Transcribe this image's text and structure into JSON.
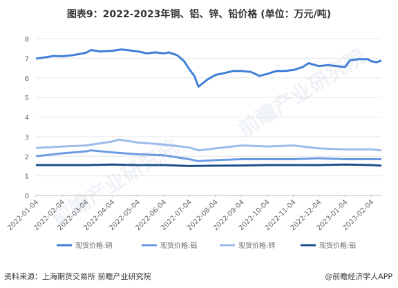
{
  "title": "图表9：2022-2023年铜、铝、锌、铅价格 (单位：万元/吨)",
  "source": "资料来源：上海期货交易所 前瞻产业研究院",
  "brand": "@前瞻经济学人APP",
  "watermark": "前瞻产业研究院",
  "chart_data": {
    "type": "line",
    "title": "图表9：2022-2023年铜、铝、锌、铅价格 (单位：万元/吨)",
    "xlabel": "",
    "ylabel": "",
    "ylim": [
      0,
      8
    ],
    "yticks": [
      0,
      1,
      2,
      3,
      4,
      5,
      6,
      7,
      8
    ],
    "xticks": [
      "2022-01-04",
      "2022-02-04",
      "2022-03-04",
      "2022-04-04",
      "2022-05-04",
      "2022-06-04",
      "2022-07-04",
      "2022-08-04",
      "2022-09-04",
      "2022-10-04",
      "2022-11-04",
      "2022-12-04",
      "2023-01-04",
      "2023-02-04"
    ],
    "legend_position": "bottom",
    "grid": "horizontal",
    "series": [
      {
        "name": "现货价格:铜",
        "color": "#3f7fd6",
        "points": [
          [
            "2022-01-04",
            6.98
          ],
          [
            "2022-01-15",
            7.05
          ],
          [
            "2022-01-25",
            7.12
          ],
          [
            "2022-02-04",
            7.1
          ],
          [
            "2022-02-15",
            7.15
          ],
          [
            "2022-02-25",
            7.22
          ],
          [
            "2022-03-04",
            7.28
          ],
          [
            "2022-03-10",
            7.42
          ],
          [
            "2022-03-20",
            7.35
          ],
          [
            "2022-04-04",
            7.38
          ],
          [
            "2022-04-15",
            7.45
          ],
          [
            "2022-04-25",
            7.4
          ],
          [
            "2022-05-04",
            7.35
          ],
          [
            "2022-05-15",
            7.25
          ],
          [
            "2022-05-25",
            7.3
          ],
          [
            "2022-06-04",
            7.25
          ],
          [
            "2022-06-10",
            7.3
          ],
          [
            "2022-06-20",
            7.15
          ],
          [
            "2022-06-28",
            6.85
          ],
          [
            "2022-07-04",
            6.45
          ],
          [
            "2022-07-10",
            6.1
          ],
          [
            "2022-07-15",
            5.55
          ],
          [
            "2022-07-25",
            5.9
          ],
          [
            "2022-08-04",
            6.15
          ],
          [
            "2022-08-15",
            6.25
          ],
          [
            "2022-08-25",
            6.35
          ],
          [
            "2022-09-04",
            6.35
          ],
          [
            "2022-09-15",
            6.3
          ],
          [
            "2022-09-25",
            6.1
          ],
          [
            "2022-10-04",
            6.2
          ],
          [
            "2022-10-15",
            6.35
          ],
          [
            "2022-10-25",
            6.35
          ],
          [
            "2022-11-04",
            6.4
          ],
          [
            "2022-11-15",
            6.55
          ],
          [
            "2022-11-22",
            6.75
          ],
          [
            "2022-12-04",
            6.6
          ],
          [
            "2022-12-15",
            6.65
          ],
          [
            "2022-12-25",
            6.6
          ],
          [
            "2023-01-04",
            6.55
          ],
          [
            "2023-01-10",
            6.9
          ],
          [
            "2023-01-20",
            6.95
          ],
          [
            "2023-01-31",
            6.95
          ],
          [
            "2023-02-04",
            6.85
          ],
          [
            "2023-02-10",
            6.8
          ],
          [
            "2023-02-16",
            6.88
          ]
        ]
      },
      {
        "name": "现货价格:铝",
        "color": "#6b9be3",
        "points": [
          [
            "2022-01-04",
            2.0
          ],
          [
            "2022-02-04",
            2.15
          ],
          [
            "2022-03-04",
            2.25
          ],
          [
            "2022-03-10",
            2.3
          ],
          [
            "2022-04-04",
            2.2
          ],
          [
            "2022-05-04",
            2.1
          ],
          [
            "2022-06-04",
            2.05
          ],
          [
            "2022-07-04",
            1.85
          ],
          [
            "2022-07-15",
            1.75
          ],
          [
            "2022-08-04",
            1.8
          ],
          [
            "2022-09-04",
            1.85
          ],
          [
            "2022-10-04",
            1.85
          ],
          [
            "2022-11-04",
            1.85
          ],
          [
            "2022-12-04",
            1.9
          ],
          [
            "2023-01-04",
            1.85
          ],
          [
            "2023-02-04",
            1.85
          ],
          [
            "2023-02-16",
            1.85
          ]
        ]
      },
      {
        "name": "现货价格:锌",
        "color": "#9bbbec",
        "points": [
          [
            "2022-01-04",
            2.42
          ],
          [
            "2022-02-04",
            2.5
          ],
          [
            "2022-03-04",
            2.55
          ],
          [
            "2022-04-04",
            2.75
          ],
          [
            "2022-04-12",
            2.85
          ],
          [
            "2022-05-04",
            2.7
          ],
          [
            "2022-06-04",
            2.6
          ],
          [
            "2022-07-04",
            2.45
          ],
          [
            "2022-07-15",
            2.3
          ],
          [
            "2022-08-04",
            2.4
          ],
          [
            "2022-09-04",
            2.55
          ],
          [
            "2022-10-04",
            2.5
          ],
          [
            "2022-11-04",
            2.55
          ],
          [
            "2022-12-04",
            2.4
          ],
          [
            "2023-01-04",
            2.35
          ],
          [
            "2023-02-04",
            2.35
          ],
          [
            "2023-02-16",
            2.3
          ]
        ]
      },
      {
        "name": "现货价格:铅",
        "color": "#1b4f8c",
        "points": [
          [
            "2022-01-04",
            1.55
          ],
          [
            "2022-02-04",
            1.55
          ],
          [
            "2022-03-04",
            1.55
          ],
          [
            "2022-04-04",
            1.58
          ],
          [
            "2022-05-04",
            1.55
          ],
          [
            "2022-06-04",
            1.55
          ],
          [
            "2022-07-04",
            1.5
          ],
          [
            "2022-08-04",
            1.52
          ],
          [
            "2022-09-04",
            1.53
          ],
          [
            "2022-10-04",
            1.55
          ],
          [
            "2022-11-04",
            1.55
          ],
          [
            "2022-12-04",
            1.55
          ],
          [
            "2023-01-04",
            1.58
          ],
          [
            "2023-02-04",
            1.55
          ],
          [
            "2023-02-16",
            1.52
          ]
        ]
      }
    ]
  }
}
